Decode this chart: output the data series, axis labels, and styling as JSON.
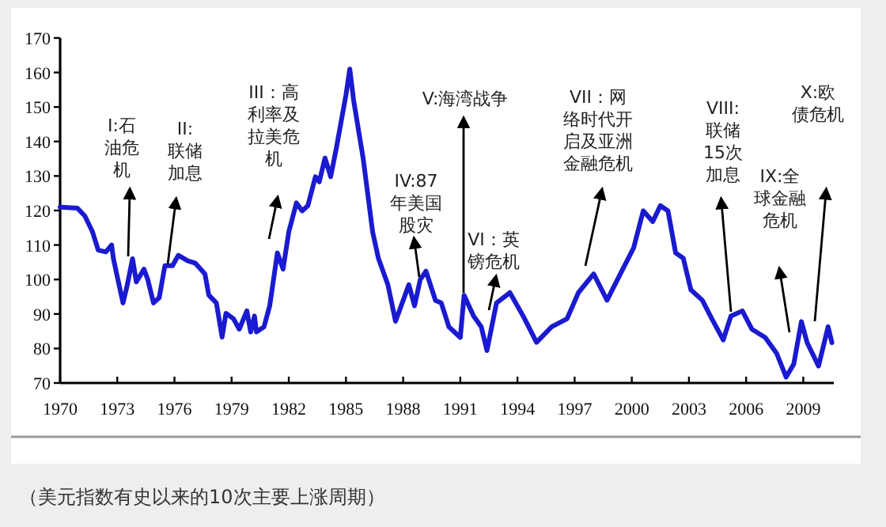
{
  "chart_data": {
    "type": "line",
    "x": [
      1970,
      1970.9,
      1971.3,
      1971.7,
      1972.0,
      1972.4,
      1972.7,
      1972.8,
      1973.0,
      1973.3,
      1973.5,
      1973.8,
      1974.0,
      1974.4,
      1974.6,
      1974.9,
      1975.2,
      1975.5,
      1975.9,
      1976.2,
      1976.7,
      1977.1,
      1977.6,
      1977.8,
      1978.2,
      1978.5,
      1978.7,
      1979.1,
      1979.4,
      1979.8,
      1980.0,
      1980.2,
      1980.3,
      1980.7,
      1981.0,
      1981.4,
      1981.7,
      1982.0,
      1982.4,
      1982.7,
      1983.0,
      1983.4,
      1983.6,
      1983.9,
      1984.2,
      1984.5,
      1985.0,
      1985.2,
      1985.4,
      1985.9,
      1986.4,
      1986.7,
      1987.2,
      1987.6,
      1987.9,
      1988.3,
      1988.6,
      1988.9,
      1989.2,
      1989.7,
      1990.0,
      1990.4,
      1991.0,
      1991.2,
      1991.7,
      1992.1,
      1992.4,
      1992.9,
      1993.6,
      1994.3,
      1995.0,
      1995.8,
      1996.6,
      1997.2,
      1998.0,
      1998.7,
      1999.4,
      2000.1,
      2000.6,
      2001.1,
      2001.5,
      2001.9,
      2002.3,
      2002.7,
      2003.1,
      2003.7,
      2004.2,
      2004.8,
      2005.2,
      2005.8,
      2006.3,
      2007.0,
      2007.6,
      2008.1,
      2008.5,
      2008.9,
      2009.2,
      2009.8,
      2010.3,
      2010.5
    ],
    "series": [
      {
        "color": "#1a1ad0",
        "values": [
          121,
          120.7,
          118.4,
          113.8,
          108.5,
          108,
          110,
          106,
          100.8,
          93.2,
          97.8,
          106,
          99.3,
          103,
          100,
          93.2,
          94.7,
          104,
          104,
          107,
          105.4,
          104.7,
          101.6,
          95.5,
          93.2,
          83.3,
          90.2,
          88.6,
          85.6,
          90.9,
          84.8,
          89.4,
          84.8,
          86.3,
          92.4,
          107.7,
          103,
          113.8,
          122.2,
          119.9,
          121.4,
          129.8,
          128.3,
          135.2,
          129.8,
          138.2,
          153.5,
          161,
          152,
          135.2,
          113.8,
          106.2,
          98.5,
          87.9,
          92.4,
          98.5,
          92.4,
          100,
          102.4,
          93.9,
          93.2,
          86.3,
          83.2,
          95.4,
          89.4,
          86.3,
          79.4,
          93.2,
          96.2,
          89.4,
          81.8,
          86.3,
          88.6,
          96.2,
          101.6,
          94,
          101.6,
          109.2,
          119.9,
          116.8,
          121.4,
          119.9,
          107.7,
          106.2,
          97,
          94,
          88.6,
          82.5,
          89.4,
          90.9,
          85.6,
          83.2,
          78.6,
          71.7,
          75.5,
          87.8,
          81.7,
          74.9,
          86.3,
          81.7
        ]
      }
    ],
    "xlim": [
      1970,
      2010.6
    ],
    "xticks": [
      1970,
      1973,
      1976,
      1979,
      1982,
      1985,
      1988,
      1991,
      1994,
      1997,
      2000,
      2003,
      2006,
      2009
    ],
    "ylim": [
      70,
      170
    ],
    "yticks": [
      70,
      80,
      90,
      100,
      110,
      120,
      130,
      140,
      150,
      160,
      170
    ],
    "grid": false,
    "marker": "none",
    "line_style": "solid",
    "annotations": [
      "I:石油危机",
      "II:联储加息",
      "III：高利率及拉美危机",
      "IV:87年美国股灾",
      "V:海湾战争",
      "VI：英镑危机",
      "VII：网络时代开启及亚洲金融危机",
      "VIII:联储15次加息",
      "IX:全球金融危机",
      "X:欧债危机",
      "（美元指数有史以来的10次主要上涨周期）"
    ]
  }
}
